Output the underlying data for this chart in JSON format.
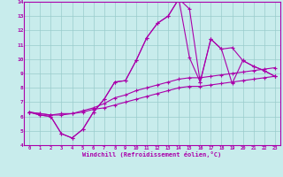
{
  "xlabel": "Windchill (Refroidissement éolien,°C)",
  "bg_color": "#c8ecec",
  "line_color": "#aa00aa",
  "grid_color": "#99cccc",
  "xlim": [
    -0.5,
    23.5
  ],
  "ylim": [
    4,
    14
  ],
  "xticks": [
    0,
    1,
    2,
    3,
    4,
    5,
    6,
    7,
    8,
    9,
    10,
    11,
    12,
    13,
    14,
    15,
    16,
    17,
    18,
    19,
    20,
    21,
    22,
    23
  ],
  "yticks": [
    4,
    5,
    6,
    7,
    8,
    9,
    10,
    11,
    12,
    13,
    14
  ],
  "lines": [
    [
      6.3,
      6.1,
      6.0,
      4.8,
      4.5,
      5.1,
      6.3,
      7.2,
      8.4,
      8.5,
      9.9,
      11.5,
      12.5,
      13.0,
      14.2,
      13.5,
      8.4,
      11.4,
      10.7,
      10.8,
      9.9,
      9.5,
      9.2,
      8.8
    ],
    [
      6.3,
      6.1,
      6.0,
      4.8,
      4.5,
      5.1,
      6.3,
      7.2,
      8.4,
      8.5,
      9.9,
      11.5,
      12.5,
      13.0,
      14.2,
      10.1,
      8.4,
      11.4,
      10.7,
      8.3,
      9.9,
      9.5,
      9.2,
      8.8
    ],
    [
      6.3,
      6.2,
      6.1,
      6.1,
      6.2,
      6.4,
      6.6,
      6.9,
      7.3,
      7.5,
      7.8,
      8.0,
      8.2,
      8.4,
      8.6,
      8.7,
      8.7,
      8.8,
      8.9,
      9.0,
      9.1,
      9.2,
      9.3,
      9.4
    ],
    [
      6.3,
      6.2,
      6.1,
      6.2,
      6.2,
      6.3,
      6.5,
      6.6,
      6.8,
      7.0,
      7.2,
      7.4,
      7.6,
      7.8,
      8.0,
      8.1,
      8.1,
      8.2,
      8.3,
      8.4,
      8.5,
      8.6,
      8.7,
      8.8
    ]
  ]
}
